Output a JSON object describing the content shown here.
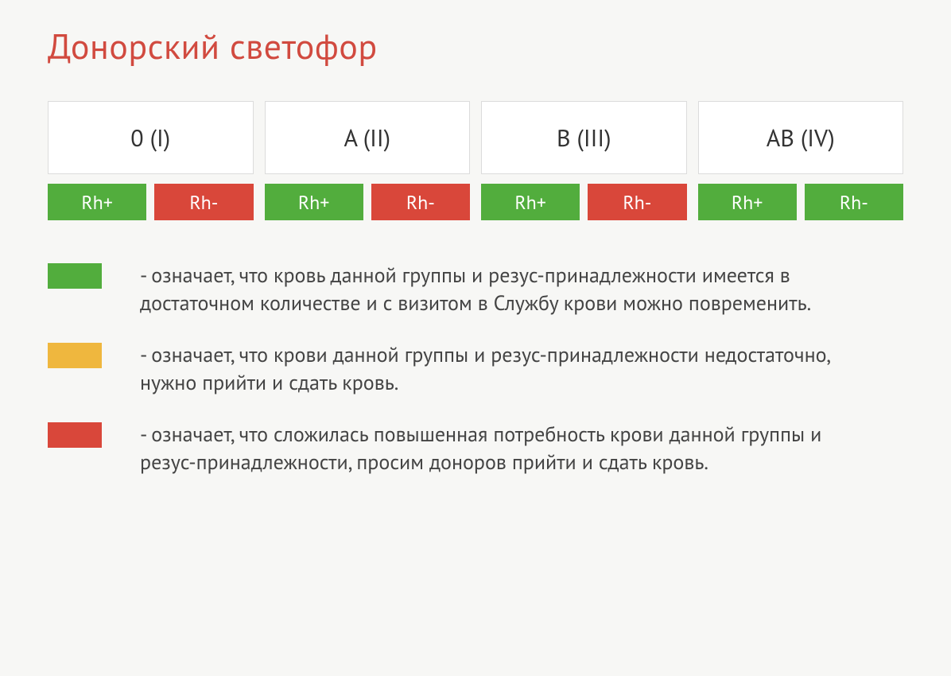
{
  "title": "Донорский светофор",
  "colors": {
    "green": "#52ad3d",
    "red": "#d9473a",
    "amber": "#efb73e",
    "card_bg": "#ffffff",
    "card_border": "#dcdcdc",
    "page_bg": "#f7f7f5",
    "title_color": "#d14a3f",
    "text_color": "#444444"
  },
  "groups": [
    {
      "label": "0 (I)",
      "rh": [
        {
          "label": "Rh+",
          "status": "green"
        },
        {
          "label": "Rh-",
          "status": "red"
        }
      ]
    },
    {
      "label": "A (II)",
      "rh": [
        {
          "label": "Rh+",
          "status": "green"
        },
        {
          "label": "Rh-",
          "status": "red"
        }
      ]
    },
    {
      "label": "B (III)",
      "rh": [
        {
          "label": "Rh+",
          "status": "green"
        },
        {
          "label": "Rh-",
          "status": "red"
        }
      ]
    },
    {
      "label": "AB (IV)",
      "rh": [
        {
          "label": "Rh+",
          "status": "green"
        },
        {
          "label": "Rh-",
          "status": "green"
        }
      ]
    }
  ],
  "legend": [
    {
      "color": "green",
      "text": "- означает, что кровь данной группы и резус-принадлежности имеется в достаточном количестве и с визитом в Службу крови можно повременить."
    },
    {
      "color": "amber",
      "text": "- означает, что крови данной группы и резус-принадлежности недостаточно, нужно прийти и сдать кровь."
    },
    {
      "color": "red",
      "text": "- означает, что сложилась повышенная потребность крови данной группы и резус-принадлежности, просим доноров прийти и сдать кровь."
    }
  ]
}
